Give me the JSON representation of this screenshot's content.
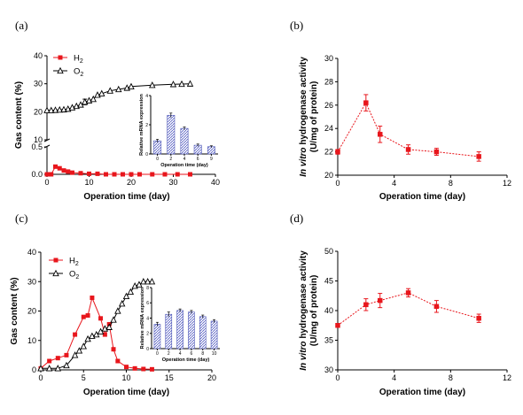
{
  "chart_data": [
    {
      "id": "a",
      "panel_label": "(a)",
      "type": "line",
      "xlabel": "Operation time (day)",
      "ylabel": "Gas content (%)",
      "xlim": [
        0,
        40
      ],
      "xticks": [
        0,
        10,
        20,
        30,
        40
      ],
      "y_broken_axis": true,
      "ylim_lower": [
        0,
        0.5
      ],
      "yticks_lower": [
        "0.0",
        "0.5"
      ],
      "ylim_upper": [
        10,
        40
      ],
      "yticks_upper": [
        10,
        20,
        30,
        40
      ],
      "legend_position": "top-left",
      "series": [
        {
          "name": "H2",
          "name_main": "H",
          "name_sub": "2",
          "marker": "filled-square",
          "color": "#e8161c",
          "x": [
            0,
            1,
            2,
            3,
            4,
            5,
            6,
            8,
            10,
            12,
            14,
            16,
            18,
            20,
            22,
            25,
            28,
            31,
            34
          ],
          "y": [
            0.0,
            0.0,
            0.14,
            0.11,
            0.07,
            0.05,
            0.03,
            0.02,
            0.01,
            0.01,
            0.0,
            0.0,
            0.0,
            0.0,
            0.0,
            0.0,
            0.0,
            0.0,
            0.0
          ]
        },
        {
          "name": "O2",
          "name_main": "O",
          "name_sub": "2",
          "marker": "open-triangle",
          "color": "#000000",
          "x": [
            0,
            1,
            2,
            3,
            4,
            5,
            6,
            7,
            8,
            9,
            10,
            11,
            12,
            13,
            15,
            17,
            19,
            20,
            25,
            30,
            32,
            34
          ],
          "y": [
            20.5,
            20.5,
            20.6,
            20.7,
            20.8,
            21.0,
            21.5,
            22.0,
            22.5,
            23.5,
            24.0,
            24.5,
            26.0,
            26.5,
            27.5,
            28.0,
            28.5,
            29.0,
            29.5,
            29.8,
            29.9,
            30.0
          ],
          "err": [
            0,
            0,
            0,
            0,
            0,
            0,
            0,
            0,
            0,
            1.0,
            0,
            0,
            0,
            0,
            0,
            0,
            0,
            0,
            0,
            0,
            0,
            0
          ]
        }
      ],
      "inset": {
        "type": "bar",
        "ylabel": "Relative mRNA expression",
        "xlabel": "Operation time (day)",
        "categories": [
          "0",
          "2",
          "4",
          "6",
          "9"
        ],
        "values": [
          0.9,
          2.65,
          1.75,
          0.6,
          0.5
        ],
        "errors": [
          0.1,
          0.15,
          0.1,
          0.08,
          0.06
        ],
        "ylim": [
          0,
          4
        ],
        "yticks": [
          0,
          2,
          4
        ]
      }
    },
    {
      "id": "b",
      "panel_label": "(b)",
      "type": "line",
      "xlabel": "Operation time (day)",
      "ylabel_italic": "In vitro",
      "ylabel_rest": " hydrogenase activity",
      "ylabel_line2": "(U/mg of protein)",
      "xlim": [
        0,
        12
      ],
      "xticks": [
        0,
        4,
        8,
        12
      ],
      "ylim": [
        20,
        30
      ],
      "yticks": [
        20,
        22,
        24,
        26,
        28,
        30
      ],
      "series": [
        {
          "color": "#e8161c",
          "marker": "filled-square",
          "dashed": true,
          "x": [
            0,
            2,
            3,
            5,
            7,
            10
          ],
          "y": [
            22.0,
            26.2,
            23.5,
            22.2,
            22.0,
            21.6
          ],
          "err": [
            0.2,
            0.7,
            0.7,
            0.4,
            0.3,
            0.4
          ]
        }
      ]
    },
    {
      "id": "c",
      "panel_label": "(c)",
      "type": "line",
      "xlabel": "Operation time (day)",
      "ylabel": "Gas content (%)",
      "xlim": [
        0,
        20
      ],
      "xticks": [
        0,
        5,
        10,
        15,
        20
      ],
      "ylim": [
        0,
        40
      ],
      "yticks": [
        0,
        10,
        20,
        30,
        40
      ],
      "legend_position": "top-left",
      "series": [
        {
          "name": "H2",
          "name_main": "H",
          "name_sub": "2",
          "marker": "filled-square",
          "color": "#e8161c",
          "x": [
            0,
            1,
            2,
            3,
            4,
            5,
            5.5,
            6,
            7,
            7.5,
            8,
            8.5,
            9,
            10,
            11,
            12,
            13
          ],
          "y": [
            0.5,
            3.0,
            4.0,
            5.0,
            12.0,
            18.0,
            18.5,
            24.5,
            17.5,
            12.0,
            15.5,
            7.0,
            3.0,
            1.0,
            0.5,
            0.3,
            0.2
          ]
        },
        {
          "name": "O2",
          "name_main": "O",
          "name_sub": "2",
          "marker": "open-triangle",
          "color": "#000000",
          "x": [
            0,
            1,
            2,
            3,
            4,
            4.5,
            5,
            5.5,
            6,
            6.5,
            7,
            7.5,
            8,
            8.5,
            9,
            9.5,
            10,
            10.5,
            11,
            11.5,
            12,
            12.5,
            13
          ],
          "y": [
            0.5,
            0.5,
            0.5,
            1.5,
            5.0,
            6.5,
            8.0,
            10.5,
            11.5,
            12.0,
            13.0,
            14.0,
            14.5,
            17.0,
            20.0,
            22.5,
            25.0,
            26.5,
            28.5,
            29.0,
            30.0,
            30.0,
            30.0
          ]
        }
      ],
      "inset": {
        "type": "bar",
        "ylabel": "Relative mRNA expression",
        "xlabel": "Operation time (day)",
        "categories": [
          "0",
          "2",
          "4",
          "6",
          "8",
          "10"
        ],
        "values": [
          3.2,
          4.5,
          5.0,
          4.8,
          4.2,
          3.6
        ],
        "errors": [
          0.25,
          0.3,
          0.2,
          0.2,
          0.2,
          0.2
        ],
        "ylim": [
          0,
          8
        ],
        "yticks": [
          0,
          2,
          4,
          6,
          8
        ]
      }
    },
    {
      "id": "d",
      "panel_label": "(d)",
      "type": "line",
      "xlabel": "Operation time (day)",
      "ylabel_italic": "In vitro",
      "ylabel_rest": " hydrogenase activity",
      "ylabel_line2": "(U/mg of protein)",
      "xlim": [
        0,
        12
      ],
      "xticks": [
        0,
        4,
        8,
        12
      ],
      "ylim": [
        30,
        50
      ],
      "yticks": [
        30,
        35,
        40,
        45,
        50
      ],
      "series": [
        {
          "color": "#e8161c",
          "marker": "filled-square",
          "dashed": true,
          "x": [
            0,
            2,
            3,
            5,
            7,
            10
          ],
          "y": [
            37.5,
            41.0,
            41.7,
            43.0,
            40.7,
            38.7
          ],
          "err": [
            0.3,
            1.0,
            1.2,
            0.7,
            1.0,
            0.7
          ]
        }
      ]
    }
  ]
}
